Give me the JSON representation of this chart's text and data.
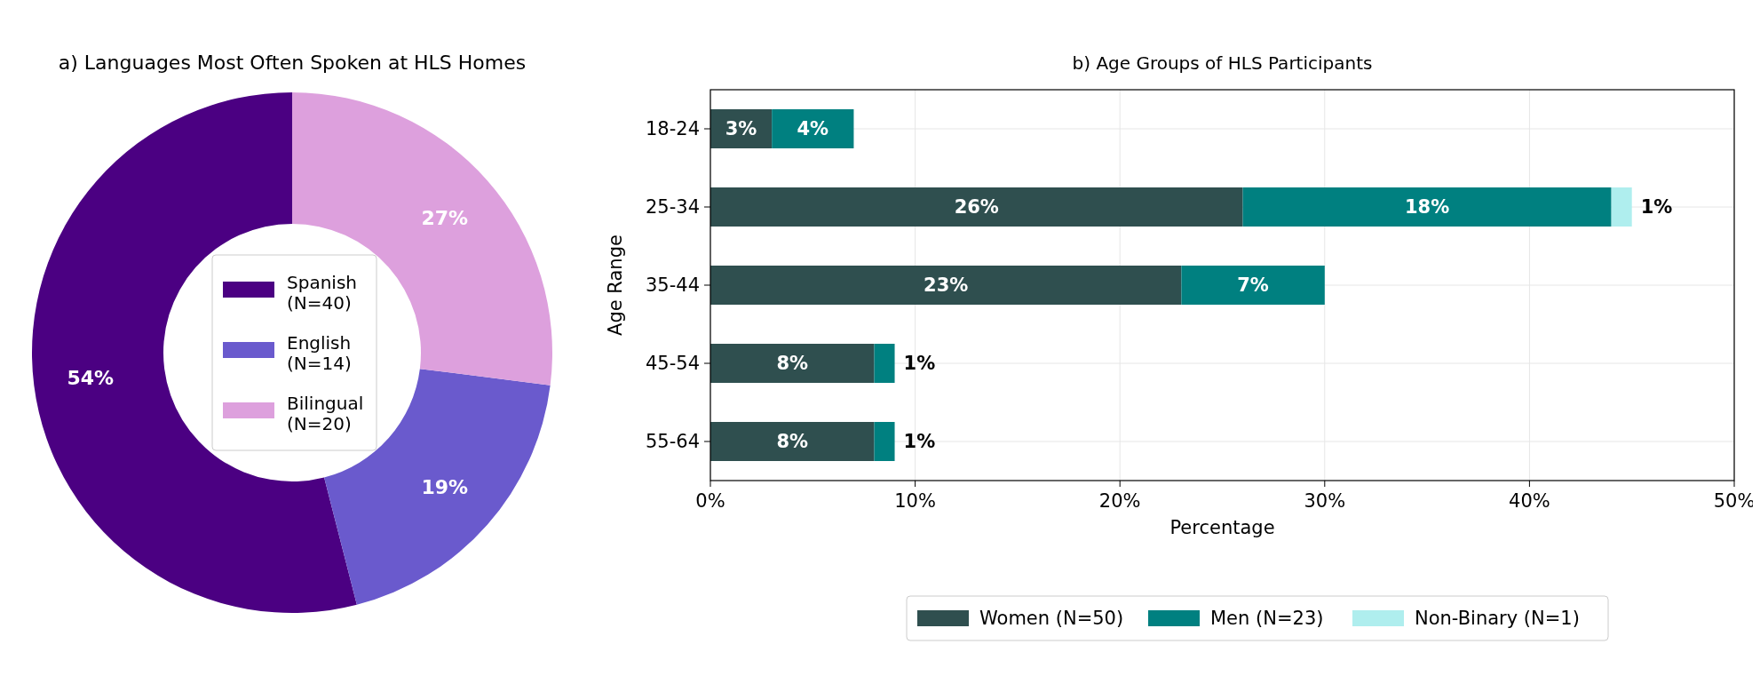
{
  "chart_data": [
    {
      "type": "donut",
      "title": "a) Languages Most Often Spoken at HLS Homes",
      "categories": [
        "Spanish\n(N=40)",
        "English\n(N=14)",
        "Bilingual\n(N=20)"
      ],
      "values": [
        54,
        19,
        27
      ],
      "colors": [
        "#4b0082",
        "#6a5acd",
        "#dda0dd"
      ],
      "value_labels": [
        "54%",
        "19%",
        "27%"
      ],
      "legend": "center"
    },
    {
      "type": "bar",
      "orientation": "horizontal",
      "stacked": true,
      "title": "b) Age Groups of HLS Participants",
      "xlabel": "Percentage",
      "ylabel": "Age Range",
      "categories": [
        "18-24",
        "25-34",
        "35-44",
        "45-54",
        "55-64"
      ],
      "series": [
        {
          "name": "Women (N=50)",
          "color": "#2f4f4f",
          "values": [
            3,
            26,
            23,
            8,
            8
          ],
          "value_labels": [
            "3%",
            "26%",
            "23%",
            "8%",
            "8%"
          ]
        },
        {
          "name": "Men (N=23)",
          "color": "#008080",
          "values": [
            4,
            18,
            7,
            1,
            1
          ],
          "value_labels": [
            "4%",
            "18%",
            "7%",
            "1%",
            "1%"
          ]
        },
        {
          "name": "Non-Binary (N=1)",
          "color": "#afeeee",
          "values": [
            null,
            1,
            null,
            null,
            null
          ],
          "value_labels": [
            null,
            "1%",
            null,
            null,
            null
          ]
        }
      ],
      "xlim": [
        0,
        50
      ],
      "xticks": [
        {
          "value": 0,
          "label": "0%"
        },
        {
          "value": 10,
          "label": "10%"
        },
        {
          "value": 20,
          "label": "20%"
        },
        {
          "value": 30,
          "label": "30%"
        },
        {
          "value": 40,
          "label": "40%"
        },
        {
          "value": 50,
          "label": "50%"
        }
      ],
      "grid": true,
      "legend": "bottom"
    }
  ]
}
